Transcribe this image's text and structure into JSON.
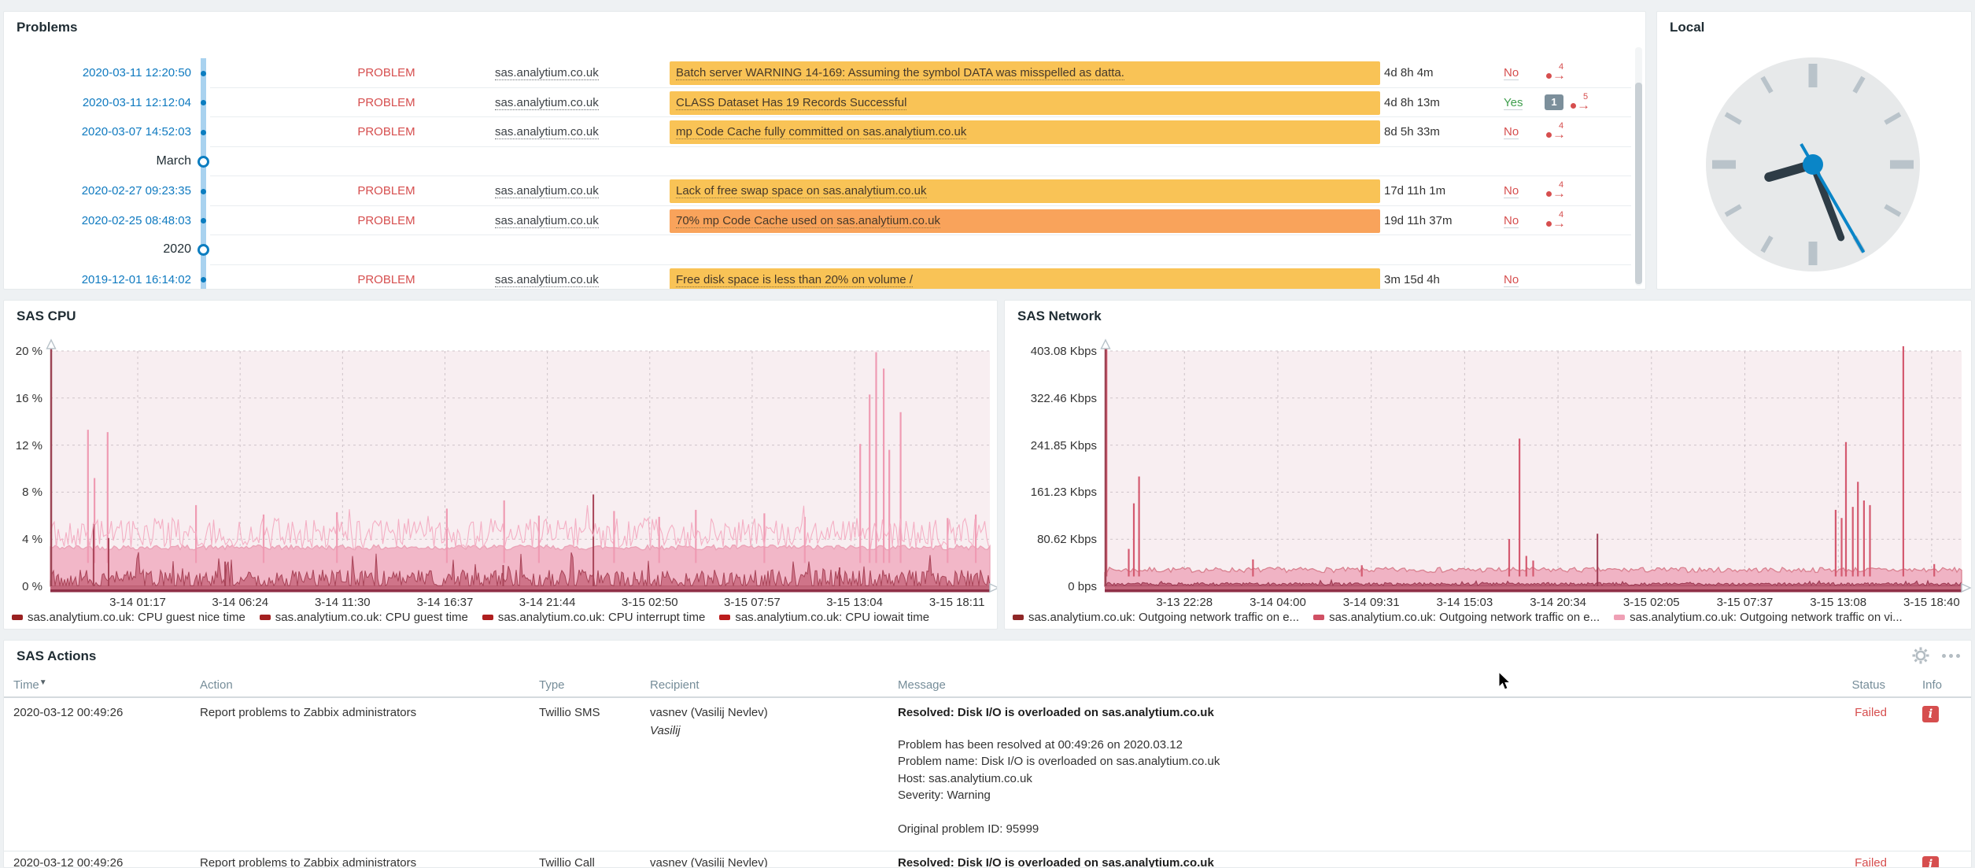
{
  "page": {
    "background": "#eef1f3"
  },
  "problems": {
    "title": "Problems",
    "severity_colors": {
      "warning": "#f9c356",
      "average": "#f9a35b"
    },
    "rows": [
      {
        "type": "problem",
        "time": "2020-03-11 12:20:50",
        "status": "PROBLEM",
        "host": "sas.analytium.co.uk",
        "message": "Batch server WARNING 14-169: Assuming the symbol DATA was misspelled as datta.",
        "severity": "warning",
        "duration": "4d 8h 4m",
        "ack": "No",
        "ack_state": "no",
        "bubble_count": "",
        "action_count": "4"
      },
      {
        "type": "problem",
        "time": "2020-03-11 12:12:04",
        "status": "PROBLEM",
        "host": "sas.analytium.co.uk",
        "message": "CLASS Dataset Has 19 Records Successful",
        "severity": "warning",
        "duration": "4d 8h 13m",
        "ack": "Yes",
        "ack_state": "yes",
        "bubble_count": "1",
        "action_count": "5"
      },
      {
        "type": "problem",
        "time": "2020-03-07 14:52:03",
        "status": "PROBLEM",
        "host": "sas.analytium.co.uk",
        "message": "mp Code Cache fully committed on sas.analytium.co.uk",
        "severity": "warning",
        "duration": "8d 5h 33m",
        "ack": "No",
        "ack_state": "no",
        "bubble_count": "",
        "action_count": "4"
      },
      {
        "type": "marker",
        "label": "March"
      },
      {
        "type": "problem",
        "time": "2020-02-27 09:23:35",
        "status": "PROBLEM",
        "host": "sas.analytium.co.uk",
        "message": "Lack of free swap space on sas.analytium.co.uk",
        "severity": "warning",
        "duration": "17d 11h 1m",
        "ack": "No",
        "ack_state": "no",
        "bubble_count": "",
        "action_count": "4"
      },
      {
        "type": "problem",
        "time": "2020-02-25 08:48:03",
        "status": "PROBLEM",
        "host": "sas.analytium.co.uk",
        "message": "70% mp Code Cache used on sas.analytium.co.uk",
        "severity": "average",
        "duration": "19d 11h 37m",
        "ack": "No",
        "ack_state": "no",
        "bubble_count": "",
        "action_count": "4"
      },
      {
        "type": "marker",
        "label": "2020"
      },
      {
        "type": "problem",
        "time": "2019-12-01 16:14:02",
        "status": "PROBLEM",
        "host": "sas.analytium.co.uk",
        "message": "Free disk space is less than 20% on volume /",
        "severity": "warning",
        "duration": "3m 15d 4h",
        "ack": "No",
        "ack_state": "no",
        "bubble_count": "",
        "action_count": ""
      }
    ]
  },
  "clock": {
    "title": "Local",
    "hour_deg": 254,
    "minute_deg": 159,
    "second_deg": 150,
    "face_color": "#e7e9ea",
    "tick_color": "#b9c3ca",
    "hand_color": "#2e3c46",
    "second_color": "#0a85c7"
  },
  "chart_data": [
    {
      "type": "area",
      "title": "SAS CPU",
      "ylim": [
        0,
        20
      ],
      "yticks": [
        "20 %",
        "16 %",
        "12 %",
        "8 %",
        "4 %",
        "0 %"
      ],
      "xticks": [
        "3-14 01:17",
        "3-14 06:24",
        "3-14 11:30",
        "3-14 16:37",
        "3-14 21:44",
        "3-15 02:50",
        "3-15 07:57",
        "3-15 13:04",
        "3-15 18:11"
      ],
      "legend": [
        {
          "label": "sas.analytium.co.uk: CPU guest nice time",
          "color": "#9a2121"
        },
        {
          "label": "sas.analytium.co.uk: CPU guest time",
          "color": "#a32020"
        },
        {
          "label": "sas.analytium.co.uk: CPU interrupt time",
          "color": "#af1e1e"
        },
        {
          "label": "sas.analytium.co.uk: CPU iowait time",
          "color": "#bb1c1c"
        }
      ],
      "model": {
        "noise_line": {
          "base": 4.5,
          "amp": 1.3,
          "color": "#f4afc4"
        },
        "band": {
          "level": 3.3,
          "amp": 0.22,
          "fill": "#f2b7c8",
          "stroke": "#eaa2b6"
        },
        "bottom": {
          "level": 0.55,
          "amp": 0.85,
          "fill": "#cf7489",
          "stroke": "#a84458"
        },
        "spike_color": "#ef9bb3",
        "spikes": [
          [
            0.04,
            13.3
          ],
          [
            0.047,
            9.2
          ],
          [
            0.061,
            13.1
          ],
          [
            0.155,
            6.9
          ],
          [
            0.227,
            6.1
          ],
          [
            0.305,
            6.3
          ],
          [
            0.422,
            6.6
          ],
          [
            0.483,
            7.3
          ],
          [
            0.52,
            6.0
          ],
          [
            0.6,
            6.4
          ],
          [
            0.648,
            5.9
          ],
          [
            0.687,
            6.5
          ],
          [
            0.76,
            6.2
          ],
          [
            0.803,
            5.9
          ],
          [
            0.862,
            12.1
          ],
          [
            0.872,
            16.3
          ],
          [
            0.879,
            19.9
          ],
          [
            0.887,
            18.5
          ],
          [
            0.893,
            11.6
          ],
          [
            0.905,
            14.8
          ],
          [
            0.955,
            5.8
          ],
          [
            0.985,
            6.1
          ]
        ],
        "bottom_spikes": [
          [
            0.046,
            5.3
          ],
          [
            0.062,
            4.1
          ],
          [
            0.186,
            2.1
          ],
          [
            0.482,
            1.8
          ],
          [
            0.578,
            7.8
          ],
          [
            0.84,
            1.6
          ]
        ]
      }
    },
    {
      "type": "area",
      "title": "SAS Network",
      "ylim": [
        0,
        403.08
      ],
      "yticks": [
        "403.08 Kbps",
        "322.46 Kbps",
        "241.85 Kbps",
        "161.23 Kbps",
        "80.62 Kbps",
        "0 bps"
      ],
      "xticks": [
        "3-13 22:28",
        "3-14 04:00",
        "3-14 09:31",
        "3-14 15:03",
        "3-14 20:34",
        "3-15 02:05",
        "3-15 07:37",
        "3-15 13:08",
        "3-15 18:40"
      ],
      "legend": [
        {
          "label": "sas.analytium.co.uk: Outgoing network traffic on e...",
          "color": "#8f2727"
        },
        {
          "label": "sas.analytium.co.uk: Outgoing network traffic on e...",
          "color": "#d05064"
        },
        {
          "label": "sas.analytium.co.uk: Outgoing network traffic on vi...",
          "color": "#efa0b5"
        }
      ],
      "model": {
        "band": {
          "level": 28,
          "amp": 4.5,
          "fill": "#f0b3c4",
          "stroke": "#d9808f"
        },
        "bottom": {
          "level": 4,
          "amp": 2.5,
          "fill": "#c06078",
          "stroke": "#9c3a52"
        },
        "spike_color": "#d45a70",
        "spikes": [
          [
            0.002,
            420
          ],
          [
            0.028,
            64
          ],
          [
            0.034,
            142
          ],
          [
            0.04,
            188
          ],
          [
            0.173,
            46
          ],
          [
            0.3,
            36
          ],
          [
            0.472,
            81
          ],
          [
            0.484,
            253
          ],
          [
            0.492,
            52
          ],
          [
            0.5,
            44
          ],
          [
            0.853,
            131
          ],
          [
            0.86,
            117
          ],
          [
            0.865,
            247
          ],
          [
            0.873,
            136
          ],
          [
            0.879,
            179
          ],
          [
            0.886,
            147
          ],
          [
            0.893,
            139
          ],
          [
            0.932,
            430
          ],
          [
            0.968,
            38
          ]
        ],
        "bottom_spikes": [
          [
            0.575,
            90
          ]
        ]
      }
    }
  ],
  "actions": {
    "title": "SAS Actions",
    "columns": [
      "Time",
      "Action",
      "Type",
      "Recipient",
      "Message",
      "Status",
      "Info"
    ],
    "sort_indicator": "▼",
    "rows": [
      {
        "time": "2020-03-12 00:49:26",
        "action": "Report problems to Zabbix administrators",
        "type": "Twillio SMS",
        "recipient": "vasnev (Vasilij Nevlev)",
        "recipient_alias": "Vasilij",
        "message_title": "Resolved: Disk I/O is overloaded on sas.analytium.co.uk",
        "message_lines": [
          "Problem has been resolved at 00:49:26 on 2020.03.12",
          "Problem name: Disk I/O is overloaded on sas.analytium.co.uk",
          "Host: sas.analytium.co.uk",
          "Severity: Warning",
          "",
          "Original problem ID: 95999"
        ],
        "status": "Failed",
        "info": "i"
      },
      {
        "time": "2020-03-12 00:49:26",
        "action": "Report problems to Zabbix administrators",
        "type": "Twillio Call",
        "recipient": "vasnev (Vasilij Nevlev)",
        "recipient_alias": "",
        "message_title": "Resolved: Disk I/O is overloaded on sas.analytium.co.uk",
        "message_lines": [],
        "status": "Failed",
        "info": "i"
      }
    ]
  }
}
